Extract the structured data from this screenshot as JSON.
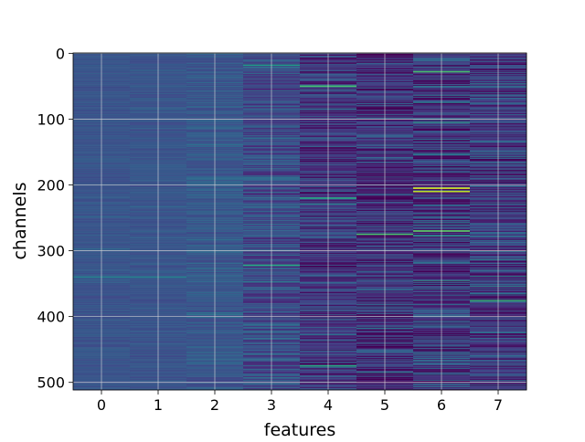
{
  "chart_data": {
    "type": "heatmap",
    "title": "",
    "xlabel": "features",
    "ylabel": "channels",
    "x_categories": [
      "0",
      "1",
      "2",
      "3",
      "4",
      "5",
      "6",
      "7"
    ],
    "y_ticks": [
      0,
      100,
      200,
      300,
      400,
      500
    ],
    "y_range": [
      0,
      511
    ],
    "rows": 512,
    "cols": 8,
    "y_inverted": true,
    "colormap": "viridis",
    "grid": true,
    "legend": "none",
    "column_intensity": [
      {
        "feature": 0,
        "mean": 0.26,
        "spread": 0.04
      },
      {
        "feature": 1,
        "mean": 0.26,
        "spread": 0.04
      },
      {
        "feature": 2,
        "mean": 0.27,
        "spread": 0.07
      },
      {
        "feature": 3,
        "mean": 0.23,
        "spread": 0.14
      },
      {
        "feature": 4,
        "mean": 0.16,
        "spread": 0.17
      },
      {
        "feature": 5,
        "mean": 0.14,
        "spread": 0.19
      },
      {
        "feature": 6,
        "mean": 0.16,
        "spread": 0.23
      },
      {
        "feature": 7,
        "mean": 0.17,
        "spread": 0.2
      }
    ],
    "notable_cells": [
      {
        "feature": 3,
        "channel": 18,
        "value": 0.55
      },
      {
        "feature": 3,
        "channel": 322,
        "value": 0.6
      },
      {
        "feature": 4,
        "channel": 50,
        "value": 0.7
      },
      {
        "feature": 4,
        "channel": 220,
        "value": 0.6
      },
      {
        "feature": 4,
        "channel": 475,
        "value": 0.6
      },
      {
        "feature": 5,
        "channel": 275,
        "value": 0.7
      },
      {
        "feature": 6,
        "channel": 205,
        "value": 0.95
      },
      {
        "feature": 6,
        "channel": 210,
        "value": 0.9
      },
      {
        "feature": 6,
        "channel": 270,
        "value": 0.75
      },
      {
        "feature": 6,
        "channel": 28,
        "value": 0.7
      },
      {
        "feature": 7,
        "channel": 376,
        "value": 0.65
      },
      {
        "feature": 0,
        "channel": 340,
        "value": 0.45
      },
      {
        "feature": 1,
        "channel": 340,
        "value": 0.45
      }
    ]
  }
}
